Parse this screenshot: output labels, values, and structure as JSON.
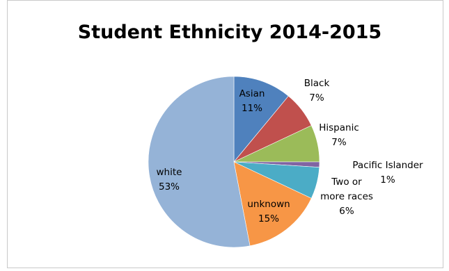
{
  "chart_data": {
    "type": "pie",
    "title": "Student Ethnicity 2014-2015",
    "start_angle_deg": 0,
    "direction": "clockwise",
    "slices": [
      {
        "name": "Asian",
        "value": 11,
        "label_lines": [
          "Asian",
          "11%"
        ],
        "color": "#4f81bd",
        "label_pos": "inside"
      },
      {
        "name": "Black",
        "value": 7,
        "label_lines": [
          "Black",
          "7%"
        ],
        "color": "#c0504d",
        "label_pos": "outside"
      },
      {
        "name": "Hispanic",
        "value": 7,
        "label_lines": [
          "Hispanic",
          "7%"
        ],
        "color": "#9bbb59",
        "label_pos": "outside"
      },
      {
        "name": "Pacific Islander",
        "value": 1,
        "label_lines": [
          "Pacific Islander",
          "1%"
        ],
        "color": "#8064a2",
        "label_pos": "outside"
      },
      {
        "name": "Two or more races",
        "value": 6,
        "label_lines": [
          "Two or",
          "more races",
          "6%"
        ],
        "color": "#4bacc6",
        "label_pos": "outside"
      },
      {
        "name": "unknown",
        "value": 15,
        "label_lines": [
          "unknown",
          "15%"
        ],
        "color": "#f79646",
        "label_pos": "inside"
      },
      {
        "name": "white",
        "value": 53,
        "label_lines": [
          "white",
          "53%"
        ],
        "color": "#95b3d7",
        "label_pos": "inside"
      }
    ]
  }
}
